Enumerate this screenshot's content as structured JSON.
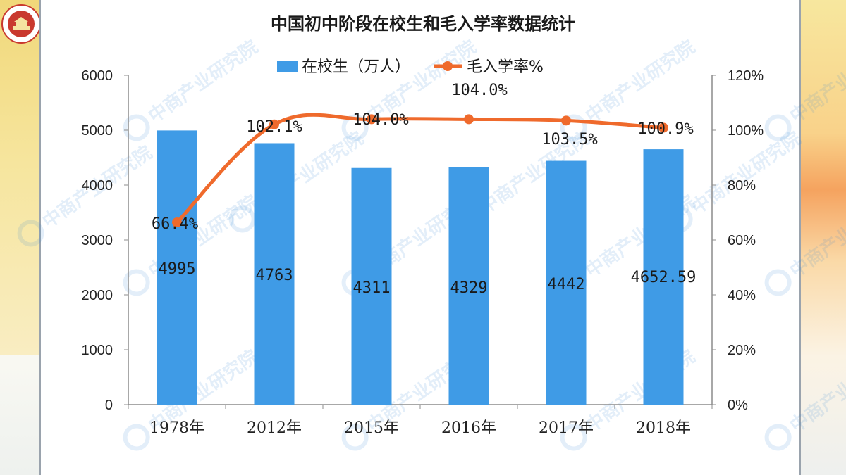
{
  "chart_data": {
    "type": "bar+line",
    "title": "中国初中阶段在校生和毛入学率数据统计",
    "categories": [
      "1978年",
      "2012年",
      "2015年",
      "2016年",
      "2017年",
      "2018年"
    ],
    "series": [
      {
        "name": "在校生（万人）",
        "type": "bar",
        "axis": "left",
        "color": "#3f9be6",
        "values": [
          4995,
          4763,
          4311,
          4329,
          4442,
          4652.59
        ],
        "labels": [
          "4995",
          "4763",
          "4311",
          "4329",
          "4442",
          "4652.59"
        ]
      },
      {
        "name": "毛入学率%",
        "type": "line",
        "axis": "right",
        "color": "#ef6a2c",
        "values": [
          66.4,
          102.1,
          104.0,
          104.0,
          103.5,
          100.9
        ],
        "labels": [
          "66.4%",
          "102.1%",
          "104.0%",
          "104.0%",
          "103.5%",
          "100.9%"
        ]
      }
    ],
    "y_left": {
      "min": 0,
      "max": 6000,
      "ticks": [
        "0",
        "1000",
        "2000",
        "3000",
        "4000",
        "5000",
        "6000"
      ]
    },
    "y_right": {
      "min": 0,
      "max": 120,
      "ticks": [
        "0%",
        "20%",
        "40%",
        "60%",
        "80%",
        "100%",
        "120%"
      ]
    },
    "legend_position": "top-center",
    "grid": false
  },
  "watermark": "中商产业研究院"
}
